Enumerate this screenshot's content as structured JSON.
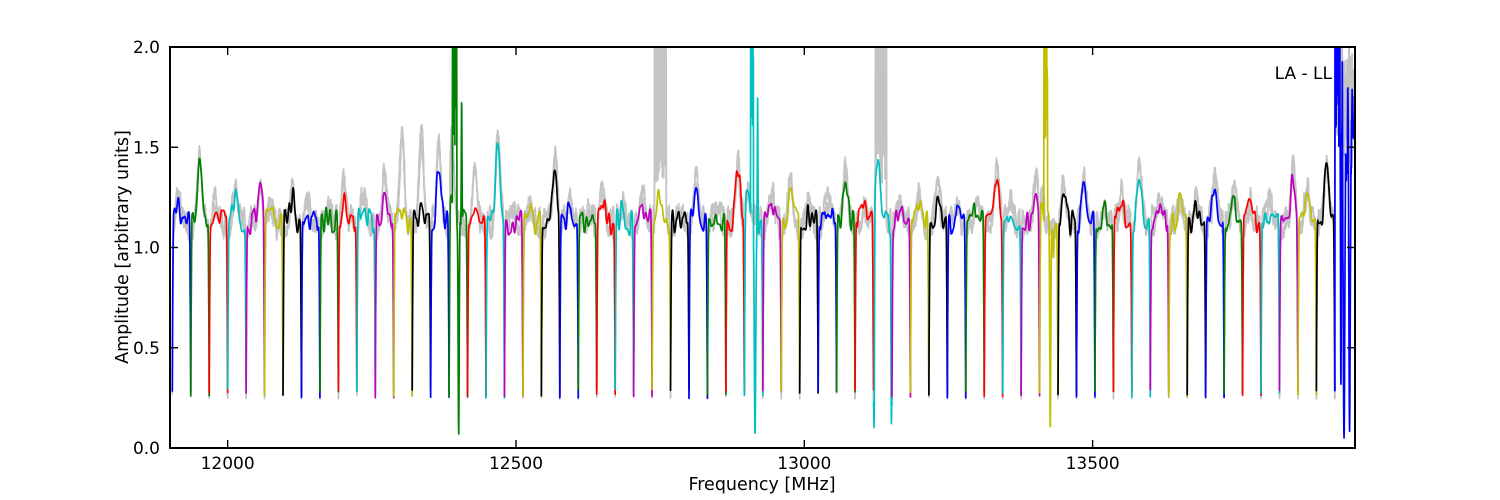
{
  "chart_data": {
    "type": "line",
    "title": "",
    "xlabel": "Frequency [MHz]",
    "ylabel": "Amplitude [arbitrary units]",
    "annotation": "LA - LL",
    "xlim": [
      11900,
      13955
    ],
    "ylim": [
      0.0,
      2.0
    ],
    "xticks": [
      12000,
      12500,
      13000,
      13500
    ],
    "yticks": [
      "0.0",
      "0.5",
      "1.0",
      "1.5",
      "2.0"
    ],
    "grid": false,
    "legend": "none",
    "color_cycle": [
      "#0000ff",
      "#008000",
      "#ff0000",
      "#00bfbf",
      "#bf00bf",
      "#bfbf00",
      "#000000"
    ],
    "background_trace_color": "#c4c4c4",
    "band_width_mhz": 32,
    "bands_start_mhz": 11904,
    "edge_level": 0.27,
    "bands": [
      {
        "peak": 1.3,
        "pos": 0.3
      },
      {
        "peak": 1.48,
        "pos": 0.5
      },
      {
        "peak": 1.27,
        "pos": 0.35
      },
      {
        "peak": 1.3,
        "pos": 0.4
      },
      {
        "peak": 1.36,
        "pos": 0.75
      },
      {
        "peak": 1.22,
        "pos": 0.3
      },
      {
        "peak": 1.31,
        "pos": 0.5
      },
      {
        "peak": 1.23,
        "pos": 0.35
      },
      {
        "peak": 1.22,
        "pos": 0.5
      },
      {
        "peak": 1.33,
        "pos": 0.3,
        "gray": 1.4
      },
      {
        "peak": 1.28,
        "pos": 0.35,
        "gray": 1.36
      },
      {
        "peak": 1.32,
        "pos": 0.5,
        "gray": 1.43
      },
      {
        "peak": 1.26,
        "pos": 0.45,
        "gray": 1.62
      },
      {
        "peak": 1.31,
        "pos": 0.5,
        "gray": 1.63
      },
      {
        "peak": 1.5,
        "pos": 0.45,
        "gray": 1.58
      },
      {
        "peak": 1.3,
        "pos": 0.15,
        "gray": 1.62,
        "clip": [
          0.3,
          0.12
        ],
        "dips": [
          [
            0.07,
            0.52,
            0.04
          ]
        ],
        "spikes": [
          [
            1.73,
            0.68,
            0.025
          ]
        ]
      },
      {
        "peak": 1.25,
        "pos": 0.4,
        "gray": 1.45
      },
      {
        "peak": 1.62,
        "pos": 0.65
      },
      {
        "peak": 1.2,
        "pos": 0.55
      },
      {
        "peak": 1.24,
        "pos": 0.35
      },
      {
        "peak": 1.47,
        "pos": 0.75
      },
      {
        "peak": 1.25,
        "pos": 0.55
      },
      {
        "peak": 1.22,
        "pos": 0.6
      },
      {
        "peak": 1.3,
        "pos": 0.3
      },
      {
        "peak": 1.25,
        "pos": 0.4
      },
      {
        "peak": 1.28,
        "pos": 0.5
      },
      {
        "peak": 1.33,
        "pos": 0.4,
        "gray_blob": [
          0.45,
          0.32
        ]
      },
      {
        "peak": 1.22,
        "pos": 0.4
      },
      {
        "peak": 1.35,
        "pos": 0.4
      },
      {
        "peak": 1.2,
        "pos": 0.6
      },
      {
        "peak": 1.45,
        "pos": 0.65
      },
      {
        "peak": 1.3,
        "pos": 0.18,
        "clip": [
          0.42,
          0.08
        ],
        "dips": [
          [
            0.07,
            0.58,
            0.055
          ]
        ],
        "spikes": [
          [
            1.75,
            0.72,
            0.022
          ]
        ]
      },
      {
        "peak": 1.3,
        "pos": 0.5
      },
      {
        "peak": 1.36,
        "pos": 0.5
      },
      {
        "peak": 1.22,
        "pos": 0.45
      },
      {
        "peak": 1.28,
        "pos": 0.5
      },
      {
        "peak": 1.42,
        "pos": 0.5
      },
      {
        "peak": 1.25,
        "pos": 0.5
      },
      {
        "peak": 1.55,
        "pos": 0.25,
        "gray_blob": [
          0.4,
          0.3
        ],
        "dips": [
          [
            0.1,
            0.03,
            0.03
          ],
          [
            0.12,
            0.97,
            0.03
          ]
        ]
      },
      {
        "peak": 1.24,
        "pos": 0.4
      },
      {
        "peak": 1.28,
        "pos": 0.45
      },
      {
        "peak": 1.33,
        "pos": 0.5
      },
      {
        "peak": 1.25,
        "pos": 0.5
      },
      {
        "peak": 1.25,
        "pos": 0.55
      },
      {
        "peak": 1.4,
        "pos": 0.7
      },
      {
        "peak": 1.25,
        "pos": 0.4
      },
      {
        "peak": 1.38,
        "pos": 0.8
      },
      {
        "peak": 1.3,
        "pos": 0.12,
        "clip": [
          0.33,
          0.1
        ],
        "dips": [
          [
            0.1,
            0.58,
            0.04
          ]
        ],
        "spikes": [
          [
            0.95,
            0.75,
            0.03
          ]
        ]
      },
      {
        "peak": 1.36,
        "pos": 0.3
      },
      {
        "peak": 1.38,
        "pos": 0.4
      },
      {
        "peak": 1.25,
        "pos": 0.5
      },
      {
        "peak": 1.28,
        "pos": 0.45
      },
      {
        "peak": 1.42,
        "pos": 0.4
      },
      {
        "peak": 1.25,
        "pos": 0.5
      },
      {
        "peak": 1.28,
        "pos": 0.6
      },
      {
        "peak": 1.25,
        "pos": 0.45
      },
      {
        "peak": 1.38,
        "pos": 0.5
      },
      {
        "peak": 1.3,
        "pos": 0.55
      },
      {
        "peak": 1.25,
        "pos": 0.4
      },
      {
        "peak": 1.25,
        "pos": 0.5
      },
      {
        "peak": 1.42,
        "pos": 0.75
      },
      {
        "peak": 1.3,
        "pos": 0.5
      },
      {
        "peak": 1.45,
        "pos": 0.55
      },
      {
        "peak": 1.6,
        "pos": 0.3,
        "noisy": true,
        "clip": [
          0.15,
          0.14
        ],
        "dips": [
          [
            0.3,
            0.33,
            0.03
          ],
          [
            0.05,
            0.5,
            0.06
          ],
          [
            0.08,
            0.8,
            0.05
          ]
        ]
      }
    ]
  }
}
